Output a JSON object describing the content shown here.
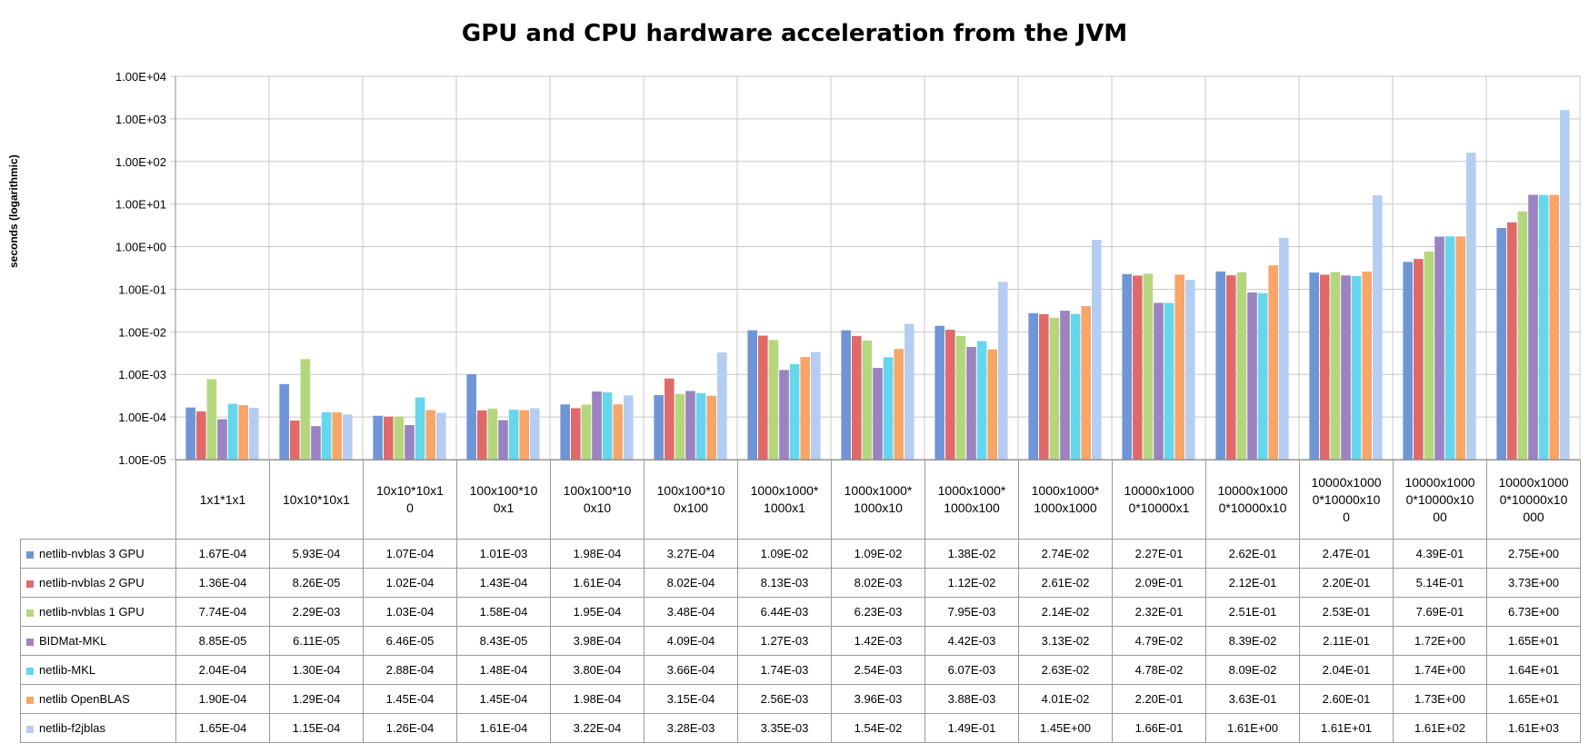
{
  "chart_data": {
    "type": "bar",
    "title": "GPU and CPU hardware acceleration from the JVM",
    "ylabel": "seconds (logarithmic)",
    "yscale": "log",
    "ylim": [
      1e-05,
      10000
    ],
    "ytick_labels": [
      "1.00E+04",
      "1.00E+03",
      "1.00E+02",
      "1.00E+01",
      "1.00E+00",
      "1.00E-01",
      "1.00E-02",
      "1.00E-03",
      "1.00E-04",
      "1.00E-05"
    ],
    "ytick_values": [
      10000,
      1000,
      100,
      10,
      1,
      0.1,
      0.01,
      0.001,
      0.0001,
      1e-05
    ],
    "grid": true,
    "legend": "data table below chart",
    "categories": [
      "1x1*1x1",
      "10x10*10x1",
      "10x10*10x10",
      "100x100*100x1",
      "100x100*100x10",
      "100x100*100x100",
      "1000x1000*1000x1",
      "1000x1000*1000x10",
      "1000x1000*1000x100",
      "1000x1000*1000x1000",
      "10000x10000*10000x1",
      "10000x10000*10000x10",
      "10000x10000*10000x100",
      "10000x10000*10000x1000",
      "10000x10000*10000x10000"
    ],
    "series": [
      {
        "name": "netlib-nvblas 3 GPU",
        "color": "#6f95d6",
        "labels": [
          "1.67E-04",
          "5.93E-04",
          "1.07E-04",
          "1.01E-03",
          "1.98E-04",
          "3.27E-04",
          "1.09E-02",
          "1.09E-02",
          "1.38E-02",
          "2.74E-02",
          "2.27E-01",
          "2.62E-01",
          "2.47E-01",
          "4.39E-01",
          "2.75E+00"
        ],
        "values": [
          0.000167,
          0.000593,
          0.000107,
          0.00101,
          0.000198,
          0.000327,
          0.0109,
          0.0109,
          0.0138,
          0.0274,
          0.227,
          0.262,
          0.247,
          0.439,
          2.75
        ]
      },
      {
        "name": "netlib-nvblas 2 GPU",
        "color": "#e06a6a",
        "labels": [
          "1.36E-04",
          "8.26E-05",
          "1.02E-04",
          "1.43E-04",
          "1.61E-04",
          "8.02E-04",
          "8.13E-03",
          "8.02E-03",
          "1.12E-02",
          "2.61E-02",
          "2.09E-01",
          "2.12E-01",
          "2.20E-01",
          "5.14E-01",
          "3.73E+00"
        ],
        "values": [
          0.000136,
          8.26e-05,
          0.000102,
          0.000143,
          0.000161,
          0.000802,
          0.00813,
          0.00802,
          0.0112,
          0.0261,
          0.209,
          0.212,
          0.22,
          0.514,
          3.73
        ]
      },
      {
        "name": "netlib-nvblas 1 GPU",
        "color": "#b4d77e",
        "labels": [
          "7.74E-04",
          "2.29E-03",
          "1.03E-04",
          "1.58E-04",
          "1.95E-04",
          "3.48E-04",
          "6.44E-03",
          "6.23E-03",
          "7.95E-03",
          "2.14E-02",
          "2.32E-01",
          "2.51E-01",
          "2.53E-01",
          "7.69E-01",
          "6.73E+00"
        ],
        "values": [
          0.000774,
          0.00229,
          0.000103,
          0.000158,
          0.000195,
          0.000348,
          0.00644,
          0.00623,
          0.00795,
          0.0214,
          0.232,
          0.251,
          0.253,
          0.769,
          6.73
        ]
      },
      {
        "name": "BIDMat-MKL",
        "color": "#9b82c0",
        "labels": [
          "8.85E-05",
          "6.11E-05",
          "6.46E-05",
          "8.43E-05",
          "3.98E-04",
          "4.09E-04",
          "1.27E-03",
          "1.42E-03",
          "4.42E-03",
          "3.13E-02",
          "4.79E-02",
          "8.39E-02",
          "2.11E-01",
          "1.72E+00",
          "1.65E+01"
        ],
        "values": [
          8.85e-05,
          6.11e-05,
          6.46e-05,
          8.43e-05,
          0.000398,
          0.000409,
          0.00127,
          0.00142,
          0.00442,
          0.0313,
          0.0479,
          0.0839,
          0.211,
          1.72,
          16.5
        ]
      },
      {
        "name": "netlib-MKL",
        "color": "#66d6ec",
        "labels": [
          "2.04E-04",
          "1.30E-04",
          "2.88E-04",
          "1.48E-04",
          "3.80E-04",
          "3.66E-04",
          "1.74E-03",
          "2.54E-03",
          "6.07E-03",
          "2.63E-02",
          "4.78E-02",
          "8.09E-02",
          "2.04E-01",
          "1.74E+00",
          "1.64E+01"
        ],
        "values": [
          0.000204,
          0.00013,
          0.000288,
          0.000148,
          0.00038,
          0.000366,
          0.00174,
          0.00254,
          0.00607,
          0.0263,
          0.0478,
          0.0809,
          0.204,
          1.74,
          16.4
        ]
      },
      {
        "name": "netlib OpenBLAS",
        "color": "#f7a668",
        "labels": [
          "1.90E-04",
          "1.29E-04",
          "1.45E-04",
          "1.45E-04",
          "1.98E-04",
          "3.15E-04",
          "2.56E-03",
          "3.96E-03",
          "3.88E-03",
          "4.01E-02",
          "2.20E-01",
          "3.63E-01",
          "2.60E-01",
          "1.73E+00",
          "1.65E+01"
        ],
        "values": [
          0.00019,
          0.000129,
          0.000145,
          0.000145,
          0.000198,
          0.000315,
          0.00256,
          0.00396,
          0.00388,
          0.0401,
          0.22,
          0.363,
          0.26,
          1.73,
          16.5
        ]
      },
      {
        "name": "netlib-f2jblas",
        "color": "#b6cdf2",
        "labels": [
          "1.65E-04",
          "1.15E-04",
          "1.26E-04",
          "1.61E-04",
          "3.22E-04",
          "3.28E-03",
          "3.35E-03",
          "1.54E-02",
          "1.49E-01",
          "1.45E+00",
          "1.66E-01",
          "1.61E+00",
          "1.61E+01",
          "1.61E+02",
          "1.61E+03"
        ],
        "values": [
          0.000165,
          0.000115,
          0.000126,
          0.000161,
          0.000322,
          0.00328,
          0.00335,
          0.0154,
          0.149,
          1.45,
          0.166,
          1.61,
          16.1,
          161,
          1610
        ]
      }
    ]
  },
  "table": {
    "header_lines": [
      [
        "1x1*1x1"
      ],
      [
        "10x10*10x1"
      ],
      [
        "10x10*10x1",
        "0"
      ],
      [
        "100x100*10",
        "0x1"
      ],
      [
        "100x100*10",
        "0x10"
      ],
      [
        "100x100*10",
        "0x100"
      ],
      [
        "1000x1000*",
        "1000x1"
      ],
      [
        "1000x1000*",
        "1000x10"
      ],
      [
        "1000x1000*",
        "1000x100"
      ],
      [
        "1000x1000*",
        "1000x1000"
      ],
      [
        "10000x1000",
        "0*10000x1"
      ],
      [
        "10000x1000",
        "0*10000x10"
      ],
      [
        "10000x1000",
        "0*10000x10",
        "0"
      ],
      [
        "10000x1000",
        "0*10000x10",
        "00"
      ],
      [
        "10000x1000",
        "0*10000x10",
        "000"
      ]
    ]
  }
}
